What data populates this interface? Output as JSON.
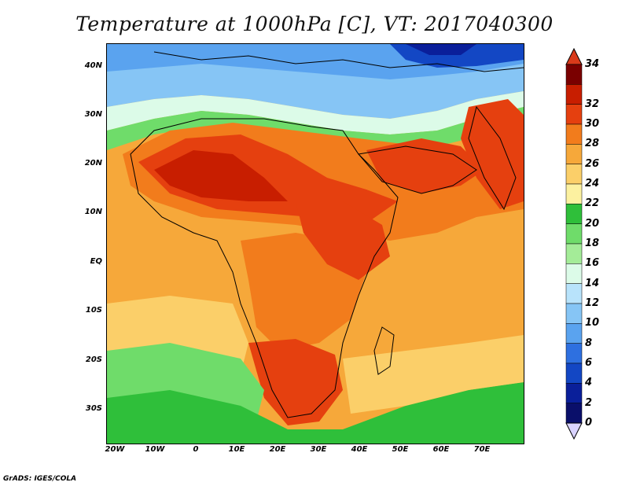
{
  "title": "Temperature at 1000hPa [C], VT: 2017040300",
  "credit": "GrADS: IGES/COLA",
  "lat_labels": [
    "40N",
    "30N",
    "20N",
    "10N",
    "EQ",
    "10S",
    "20S",
    "30S"
  ],
  "lon_labels": [
    "20W",
    "10W",
    "0",
    "10E",
    "20E",
    "30E",
    "40E",
    "50E",
    "60E",
    "70E"
  ],
  "colorbar": {
    "labels": [
      "34",
      "32",
      "30",
      "28",
      "26",
      "24",
      "22",
      "20",
      "18",
      "16",
      "14",
      "12",
      "10",
      "8",
      "6",
      "4",
      "2",
      "0"
    ],
    "colors": [
      "#7a0000",
      "#c81e00",
      "#e5400f",
      "#f27c1c",
      "#f6a83a",
      "#fbcf69",
      "#fcf1a0",
      "#2fbf3a",
      "#6fdc6a",
      "#a4ec98",
      "#dcfbe8",
      "#b8e3fb",
      "#86c5f5",
      "#5aa3ef",
      "#2e70e0",
      "#1347c4",
      "#0a1f9a",
      "#0a0f6a"
    ],
    "over_color": "#d93a1a",
    "under_color": "#d9d3ff"
  }
}
